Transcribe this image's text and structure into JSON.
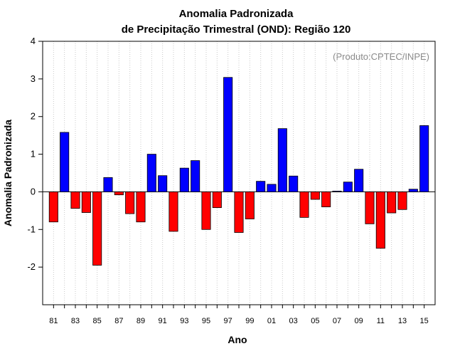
{
  "chart_data": {
    "type": "bar",
    "title": "Anomalia Padronizada",
    "subtitle": "de Precipitação Trimestral (OND): Região 120",
    "xlabel": "Ano",
    "ylabel": "Anomalia Padronizada",
    "credit": "(Produto:CPTEC/INPE)",
    "ylim": [
      -3,
      4
    ],
    "yticks": [
      -2,
      -1,
      0,
      1,
      2,
      3,
      4
    ],
    "ytick_labels": [
      "-2",
      "-1",
      "0",
      "1",
      "2",
      "3",
      "4"
    ],
    "grid": "vertical dotted",
    "categories": [
      1981,
      1982,
      1983,
      1984,
      1985,
      1986,
      1987,
      1988,
      1989,
      1990,
      1991,
      1992,
      1993,
      1994,
      1995,
      1996,
      1997,
      1998,
      1999,
      2000,
      2001,
      2002,
      2003,
      2004,
      2005,
      2006,
      2007,
      2008,
      2009,
      2010,
      2011,
      2012,
      2013,
      2014,
      2015
    ],
    "xtick_labels": [
      "81",
      "83",
      "85",
      "87",
      "89",
      "91",
      "93",
      "95",
      "97",
      "99",
      "01",
      "03",
      "05",
      "07",
      "09",
      "11",
      "13",
      "15"
    ],
    "values": [
      -0.8,
      1.58,
      -0.44,
      -0.55,
      -1.95,
      0.38,
      -0.08,
      -0.58,
      -0.8,
      1.0,
      0.43,
      -1.05,
      0.63,
      0.83,
      -1.0,
      -0.42,
      3.04,
      -1.08,
      -0.72,
      0.28,
      0.2,
      1.68,
      0.42,
      -0.68,
      -0.2,
      -0.4,
      0.02,
      0.26,
      0.6,
      -0.85,
      -1.5,
      -0.56,
      -0.47,
      0.07,
      1.76
    ],
    "colors": {
      "positive": "#0000ff",
      "negative": "#ff0000",
      "grid": "#c8c8c8",
      "axis": "#000000"
    }
  }
}
